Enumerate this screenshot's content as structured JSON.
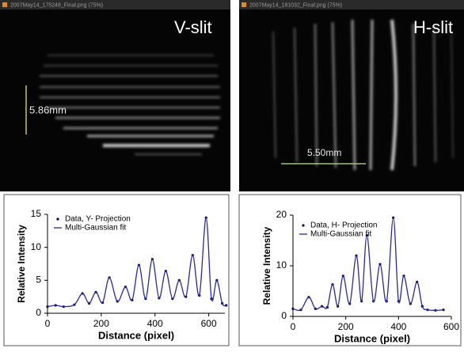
{
  "images": [
    {
      "filename": "2007May14_175248_Final.png (75%)",
      "label": "V-slit",
      "scale": "5.86mm"
    },
    {
      "filename": "2007May14_181032_Final.png (75%)",
      "label": "H-slit",
      "scale": "5.50mm"
    }
  ],
  "chart_data": [
    {
      "type": "line",
      "xlabel": "Distance (pixel)",
      "ylabel": "Relative Intensity",
      "xlim": [
        0,
        660
      ],
      "xticks": [
        0,
        200,
        400,
        600
      ],
      "ylim": [
        0,
        15
      ],
      "yticks": [
        0,
        5,
        10,
        15
      ],
      "legend": "upper-left",
      "x": [
        0,
        30,
        60,
        100,
        130,
        155,
        180,
        205,
        230,
        260,
        290,
        315,
        340,
        365,
        390,
        415,
        440,
        465,
        490,
        515,
        540,
        565,
        590,
        610,
        630,
        650,
        665
      ],
      "series": [
        {
          "name": "Data, Y- Projection",
          "style": "markers",
          "color": "#00005a",
          "values": [
            1,
            1.2,
            1,
            1.3,
            3,
            1.5,
            3.2,
            1.6,
            5.4,
            1.8,
            4,
            2,
            7.3,
            2.2,
            8.2,
            2.3,
            6.4,
            2.2,
            5,
            2.5,
            8.8,
            2.7,
            14.5,
            2.2,
            5,
            1.5,
            1.2
          ]
        },
        {
          "name": "Multi-Gaussian fit",
          "style": "line",
          "color": "#2a2a9a",
          "values": [
            1,
            1.2,
            1,
            1.3,
            3,
            1.5,
            3.2,
            1.6,
            5.4,
            1.8,
            4,
            2,
            7.3,
            2.2,
            8.2,
            2.3,
            6.4,
            2.2,
            5,
            2.5,
            8.8,
            2.7,
            14.5,
            2.2,
            5,
            1.5,
            1.2
          ]
        }
      ]
    },
    {
      "type": "line",
      "xlabel": "Distance (pixel)",
      "ylabel": "Relative Intensity",
      "xlim": [
        0,
        600
      ],
      "xticks": [
        0,
        200,
        400,
        600
      ],
      "ylim": [
        0,
        20
      ],
      "yticks": [
        0,
        10,
        20
      ],
      "legend": "upper-left",
      "x": [
        0,
        30,
        60,
        85,
        110,
        130,
        150,
        170,
        190,
        215,
        240,
        260,
        280,
        305,
        330,
        355,
        380,
        400,
        420,
        445,
        470,
        490,
        510,
        540,
        570
      ],
      "series": [
        {
          "name": "Data, H- Projection",
          "style": "markers",
          "color": "#00005a",
          "values": [
            1.5,
            1.3,
            3.8,
            1.5,
            2,
            1.8,
            6.3,
            2,
            8,
            2.5,
            12,
            3,
            16,
            3,
            10.3,
            3,
            19.5,
            3,
            8,
            2.5,
            6.8,
            2,
            1.3,
            1.2,
            1.3
          ]
        },
        {
          "name": "Multi-Gaussian fit",
          "style": "line",
          "color": "#2a2a9a",
          "values": [
            1.5,
            1.3,
            3.8,
            1.5,
            2,
            1.8,
            6.3,
            2,
            8,
            2.5,
            12,
            3,
            16,
            3,
            10.3,
            3,
            19.5,
            3,
            8,
            2.5,
            6.8,
            2,
            1.3,
            1.2,
            1.3
          ]
        }
      ]
    }
  ]
}
